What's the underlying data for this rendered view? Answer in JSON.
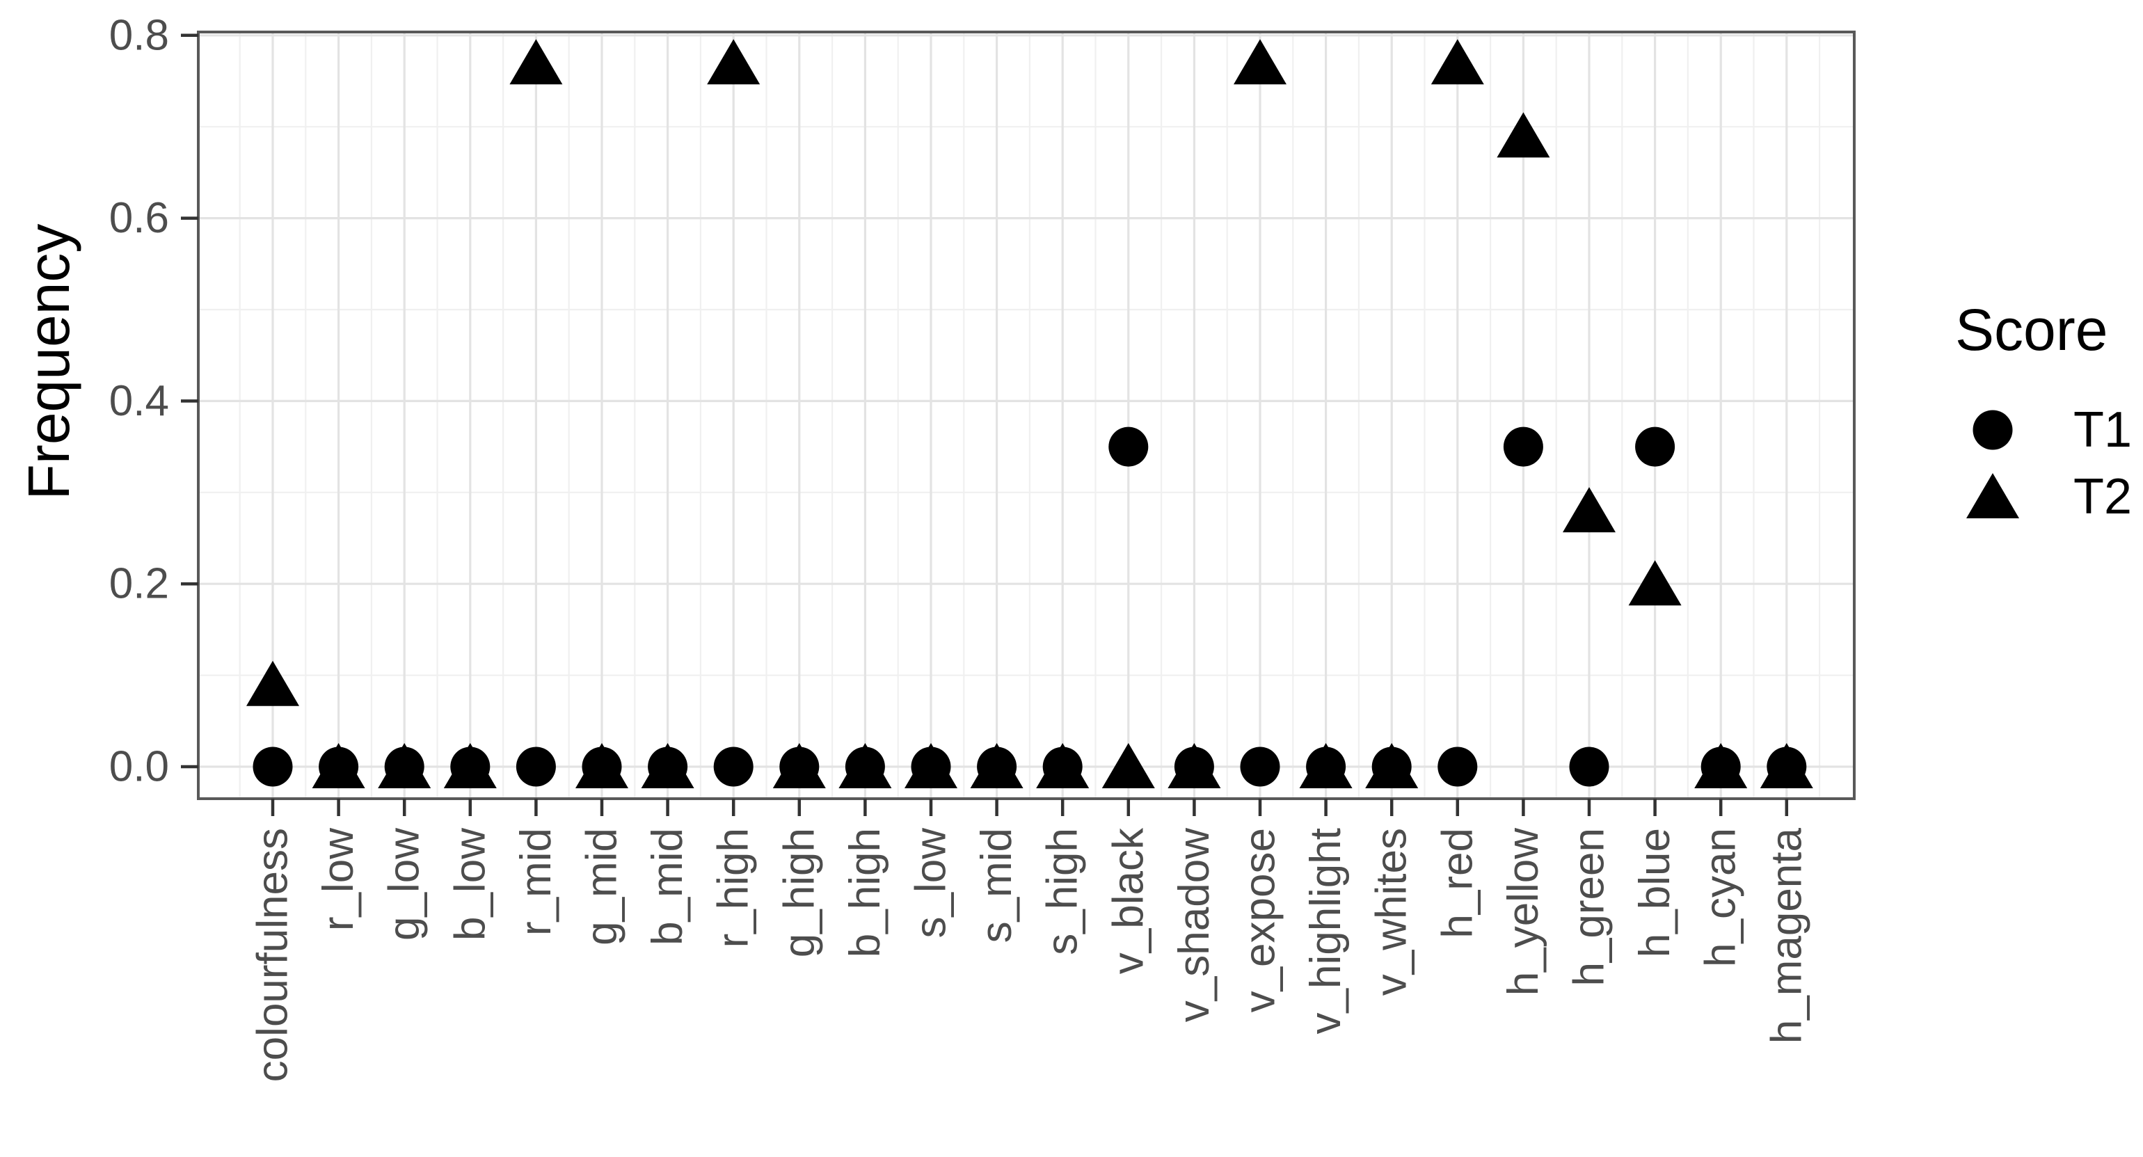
{
  "chart_data": {
    "type": "scatter",
    "title": "",
    "xlabel": "",
    "ylabel": "Frequency",
    "ylim": [
      0,
      0.8
    ],
    "yticks": [
      0.0,
      0.2,
      0.4,
      0.6,
      0.8
    ],
    "ytick_labels": [
      "0.0",
      "0.2",
      "0.4",
      "0.6",
      "0.8"
    ],
    "minor_yticks": [
      0.1,
      0.3,
      0.5,
      0.7
    ],
    "grid": "major and minor gridlines on, white panel with full border",
    "legend_position": "right",
    "legend": {
      "title": "Score",
      "entries": [
        {
          "label": "T1",
          "marker": "circle"
        },
        {
          "label": "T2",
          "marker": "triangle"
        }
      ]
    },
    "categories": [
      "colourfulness",
      "r_low",
      "g_low",
      "b_low",
      "r_mid",
      "g_mid",
      "b_mid",
      "r_high",
      "g_high",
      "b_high",
      "s_low",
      "s_mid",
      "s_high",
      "v_black",
      "v_shadow",
      "v_expose",
      "v_highlight",
      "v_whites",
      "h_red",
      "h_yellow",
      "h_green",
      "h_blue",
      "h_cyan",
      "h_magenta"
    ],
    "series": [
      {
        "name": "T1",
        "marker": "circle",
        "values": [
          0,
          0,
          0,
          0,
          0,
          0,
          0,
          0,
          0,
          0,
          0,
          0,
          0,
          0.35,
          0,
          0,
          0,
          0,
          0,
          0.35,
          0,
          0.35,
          0,
          0
        ]
      },
      {
        "name": "T2",
        "marker": "triangle",
        "values": [
          0.09,
          0,
          0,
          0,
          0.77,
          0,
          0,
          0.77,
          0,
          0,
          0,
          0,
          0,
          0,
          0,
          0.77,
          0,
          0,
          0.77,
          0.69,
          0.28,
          0.2,
          0,
          0
        ]
      }
    ]
  },
  "colors": {
    "marker": "#000000",
    "axis_text": "#4d4d4d",
    "axis_title": "#000000",
    "legend_text": "#000000",
    "panel_border": "#595959",
    "tick_mark": "#333333",
    "grid_major": "#e3e3e3",
    "grid_minor": "#f0f0f0",
    "background": "#ffffff"
  }
}
